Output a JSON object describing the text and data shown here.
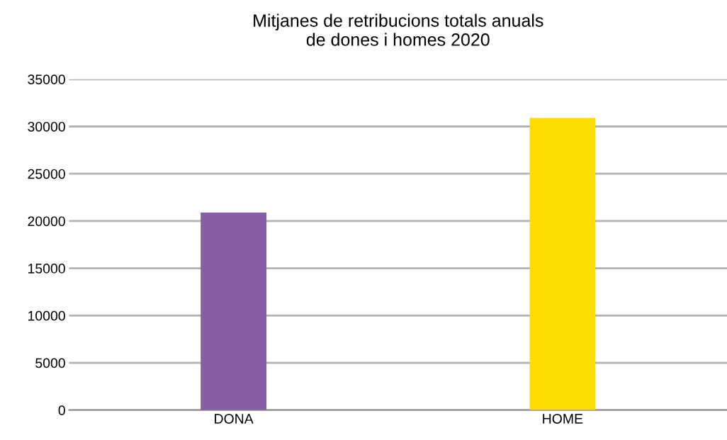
{
  "chart_data": {
    "type": "bar",
    "title": "Mitjanes de retribucions totals anuals\nde dones i homes 2020",
    "categories": [
      "DONA",
      "HOME"
    ],
    "values": [
      20900,
      30900
    ],
    "colors": [
      "#865fa5",
      "#ffdc00"
    ],
    "ylim": [
      0,
      35000
    ],
    "yticks": [
      0,
      5000,
      10000,
      15000,
      20000,
      25000,
      30000,
      35000
    ],
    "grid": "y",
    "legend": false
  }
}
